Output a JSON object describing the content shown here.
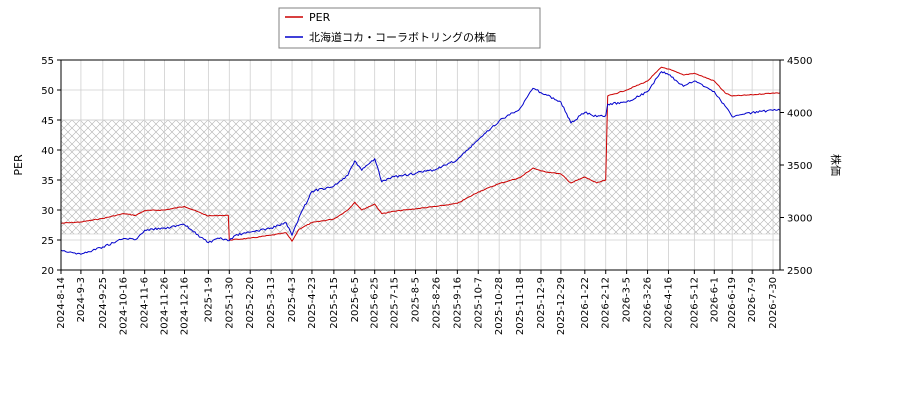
{
  "chart_data": {
    "type": "line",
    "title": "",
    "legend": {
      "placement": "top-center",
      "entries": [
        "PER",
        "北海道コカ・コーラボトリングの株価"
      ]
    },
    "x_tick_labels": [
      "2024-8-14",
      "2024-9-3",
      "2024-9-25",
      "2024-10-16",
      "2024-11-6",
      "2024-11-26",
      "2024-12-16",
      "2025-1-9",
      "2025-1-30",
      "2025-2-20",
      "2025-3-13",
      "2025-4-3",
      "2025-4-23",
      "2025-5-15",
      "2025-6-5",
      "2025-6-25",
      "2025-7-15",
      "2025-8-5",
      "2025-8-26",
      "2025-9-16",
      "2025-10-7",
      "2025-10-28",
      "2025-11-18",
      "2025-12-9",
      "2025-12-29",
      "2026-1-22",
      "2026-2-12",
      "2026-3-5",
      "2026-3-26",
      "2026-4-16",
      "2026-5-12",
      "2026-6-1",
      "2026-6-19",
      "2026-7-9",
      "2026-7-30"
    ],
    "xlim": [
      "2024-8-14",
      "2026-8-6"
    ],
    "grid": true,
    "y_left": {
      "label": "PER",
      "lim": [
        20,
        55
      ],
      "ticks": [
        20,
        25,
        30,
        35,
        40,
        45,
        50,
        55
      ]
    },
    "y_right": {
      "label": "株価",
      "lim": [
        2500,
        4500
      ],
      "ticks": [
        2500,
        3000,
        3500,
        4000,
        4500
      ]
    },
    "shaded_band": {
      "axis": "left",
      "range": [
        26,
        45
      ],
      "pattern": "crosshatch"
    },
    "series": [
      {
        "name": "PER",
        "axis": "left",
        "color": "#cc0000",
        "points": [
          [
            "2024-8-14",
            27.8
          ],
          [
            "2024-9-3",
            28.0
          ],
          [
            "2024-9-25",
            28.6
          ],
          [
            "2024-10-16",
            29.4
          ],
          [
            "2024-10-28",
            29.1
          ],
          [
            "2024-11-6",
            29.9
          ],
          [
            "2024-11-26",
            30.0
          ],
          [
            "2024-12-16",
            30.6
          ],
          [
            "2025-1-9",
            29.0
          ],
          [
            "2025-1-20",
            29.1
          ],
          [
            "2025-1-29",
            29.1
          ],
          [
            "2025-1-30",
            25.0
          ],
          [
            "2025-2-20",
            25.3
          ],
          [
            "2025-3-13",
            25.8
          ],
          [
            "2025-3-28",
            26.2
          ],
          [
            "2025-4-3",
            24.8
          ],
          [
            "2025-4-10",
            26.8
          ],
          [
            "2025-4-23",
            27.9
          ],
          [
            "2025-5-15",
            28.5
          ],
          [
            "2025-5-29",
            30.0
          ],
          [
            "2025-6-5",
            31.3
          ],
          [
            "2025-6-12",
            30.0
          ],
          [
            "2025-6-25",
            31.0
          ],
          [
            "2025-7-2",
            29.4
          ],
          [
            "2025-7-15",
            29.8
          ],
          [
            "2025-8-5",
            30.2
          ],
          [
            "2025-8-26",
            30.6
          ],
          [
            "2025-9-16",
            31.1
          ],
          [
            "2025-10-7",
            33.0
          ],
          [
            "2025-10-28",
            34.4
          ],
          [
            "2025-11-18",
            35.4
          ],
          [
            "2025-12-1",
            37.0
          ],
          [
            "2025-12-9",
            36.5
          ],
          [
            "2025-12-29",
            36.0
          ],
          [
            "2026-1-8",
            34.5
          ],
          [
            "2026-1-22",
            35.5
          ],
          [
            "2026-2-3",
            34.5
          ],
          [
            "2026-2-12",
            35.0
          ],
          [
            "2026-2-14",
            49.0
          ],
          [
            "2026-3-5",
            50.0
          ],
          [
            "2026-3-26",
            51.5
          ],
          [
            "2026-4-9",
            53.8
          ],
          [
            "2026-4-16",
            53.5
          ],
          [
            "2026-5-1",
            52.5
          ],
          [
            "2026-5-12",
            52.8
          ],
          [
            "2026-6-1",
            51.5
          ],
          [
            "2026-6-12",
            49.5
          ],
          [
            "2026-6-19",
            49.0
          ],
          [
            "2026-7-9",
            49.2
          ],
          [
            "2026-7-30",
            49.5
          ],
          [
            "2026-8-6",
            49.5
          ]
        ]
      },
      {
        "name": "北海道コカ・コーラボトリングの株価",
        "axis": "right",
        "color": "#0000cc",
        "points": [
          [
            "2024-8-14",
            2690
          ],
          [
            "2024-9-3",
            2650
          ],
          [
            "2024-9-25",
            2720
          ],
          [
            "2024-10-16",
            2800
          ],
          [
            "2024-10-28",
            2790
          ],
          [
            "2024-11-6",
            2880
          ],
          [
            "2024-11-26",
            2900
          ],
          [
            "2024-12-16",
            2930
          ],
          [
            "2025-1-9",
            2760
          ],
          [
            "2025-1-20",
            2800
          ],
          [
            "2025-1-30",
            2780
          ],
          [
            "2025-2-5",
            2830
          ],
          [
            "2025-2-20",
            2860
          ],
          [
            "2025-3-13",
            2900
          ],
          [
            "2025-3-28",
            2950
          ],
          [
            "2025-4-3",
            2830
          ],
          [
            "2025-4-10",
            3000
          ],
          [
            "2025-4-23",
            3250
          ],
          [
            "2025-5-15",
            3300
          ],
          [
            "2025-5-29",
            3400
          ],
          [
            "2025-6-5",
            3540
          ],
          [
            "2025-6-12",
            3450
          ],
          [
            "2025-6-25",
            3560
          ],
          [
            "2025-7-2",
            3340
          ],
          [
            "2025-7-15",
            3390
          ],
          [
            "2025-8-5",
            3420
          ],
          [
            "2025-8-26",
            3460
          ],
          [
            "2025-9-16",
            3550
          ],
          [
            "2025-10-7",
            3740
          ],
          [
            "2025-10-28",
            3920
          ],
          [
            "2025-11-18",
            4040
          ],
          [
            "2025-12-1",
            4230
          ],
          [
            "2025-12-9",
            4190
          ],
          [
            "2025-12-29",
            4100
          ],
          [
            "2026-1-8",
            3900
          ],
          [
            "2026-1-22",
            4000
          ],
          [
            "2026-2-3",
            3960
          ],
          [
            "2026-2-12",
            3970
          ],
          [
            "2026-2-14",
            4080
          ],
          [
            "2026-3-5",
            4100
          ],
          [
            "2026-3-26",
            4200
          ],
          [
            "2026-4-9",
            4390
          ],
          [
            "2026-4-16",
            4360
          ],
          [
            "2026-5-1",
            4250
          ],
          [
            "2026-5-12",
            4300
          ],
          [
            "2026-6-1",
            4200
          ],
          [
            "2026-6-12",
            4060
          ],
          [
            "2026-6-19",
            3960
          ],
          [
            "2026-7-9",
            4000
          ],
          [
            "2026-7-30",
            4020
          ],
          [
            "2026-8-6",
            4020
          ]
        ]
      }
    ]
  }
}
